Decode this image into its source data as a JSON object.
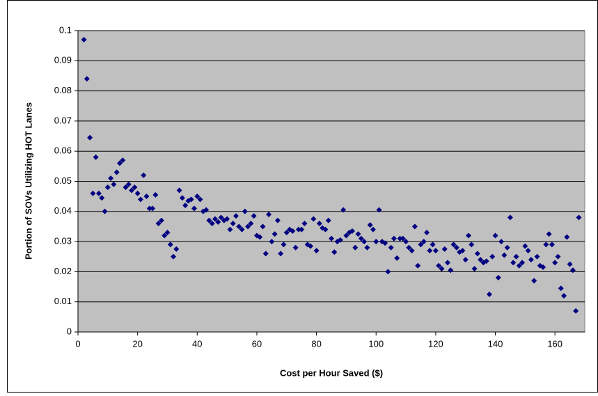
{
  "chart_data": {
    "type": "scatter",
    "xlabel": "Cost per Hour Saved ($)",
    "ylabel": "Portion of SOVs Utilizing HOT Lanes",
    "color": "#000080",
    "grid": true,
    "xlim": [
      0,
      170
    ],
    "xticks": [
      0,
      20,
      40,
      60,
      80,
      100,
      120,
      140,
      160
    ],
    "ylim": [
      0,
      0.1
    ],
    "yticks": [
      0,
      0.01,
      0.02,
      0.03,
      0.04,
      0.05,
      0.06,
      0.07,
      0.08,
      0.09,
      0.1
    ],
    "x": [
      2,
      3,
      4,
      5,
      6,
      7,
      8,
      9,
      10,
      11,
      12,
      13,
      14,
      15,
      16,
      17,
      18,
      19,
      20,
      21,
      22,
      23,
      24,
      25,
      26,
      27,
      28,
      29,
      30,
      31,
      32,
      33,
      34,
      35,
      36,
      37,
      38,
      39,
      40,
      41,
      42,
      43,
      44,
      45,
      46,
      47,
      48,
      49,
      50,
      51,
      52,
      53,
      54,
      55,
      56,
      57,
      58,
      59,
      60,
      61,
      62,
      63,
      64,
      65,
      66,
      67,
      68,
      69,
      70,
      71,
      72,
      73,
      74,
      75,
      76,
      77,
      78,
      79,
      80,
      81,
      82,
      83,
      84,
      85,
      86,
      87,
      88,
      89,
      90,
      91,
      92,
      93,
      94,
      95,
      96,
      97,
      98,
      99,
      100,
      101,
      102,
      103,
      104,
      105,
      106,
      107,
      108,
      109,
      110,
      111,
      112,
      113,
      114,
      115,
      116,
      117,
      118,
      119,
      120,
      121,
      122,
      123,
      124,
      125,
      126,
      127,
      128,
      129,
      130,
      131,
      132,
      133,
      134,
      135,
      136,
      137,
      138,
      139,
      140,
      141,
      142,
      143,
      144,
      145,
      146,
      147,
      148,
      149,
      150,
      151,
      152,
      153,
      154,
      155,
      156,
      157,
      158,
      159,
      160,
      161,
      162,
      163,
      164,
      165,
      166,
      167,
      168
    ],
    "values": [
      0.097,
      0.084,
      0.0645,
      0.046,
      0.058,
      0.046,
      0.0445,
      0.04,
      0.048,
      0.051,
      0.049,
      0.053,
      0.056,
      0.057,
      0.048,
      0.049,
      0.047,
      0.048,
      0.046,
      0.044,
      0.052,
      0.045,
      0.041,
      0.041,
      0.0455,
      0.036,
      0.037,
      0.032,
      0.033,
      0.029,
      0.025,
      0.0275,
      0.047,
      0.0445,
      0.042,
      0.0435,
      0.044,
      0.041,
      0.045,
      0.044,
      0.04,
      0.0405,
      0.037,
      0.036,
      0.0375,
      0.0365,
      0.038,
      0.037,
      0.0375,
      0.034,
      0.036,
      0.0385,
      0.035,
      0.034,
      0.04,
      0.035,
      0.036,
      0.0385,
      0.032,
      0.0315,
      0.035,
      0.026,
      0.039,
      0.03,
      0.0325,
      0.037,
      0.026,
      0.029,
      0.033,
      0.034,
      0.0335,
      0.028,
      0.034,
      0.034,
      0.036,
      0.029,
      0.0285,
      0.0375,
      0.027,
      0.036,
      0.0345,
      0.034,
      0.037,
      0.031,
      0.0265,
      0.03,
      0.0305,
      0.0405,
      0.032,
      0.033,
      0.0335,
      0.028,
      0.0325,
      0.031,
      0.03,
      0.028,
      0.0355,
      0.034,
      0.03,
      0.0405,
      0.03,
      0.0295,
      0.02,
      0.028,
      0.031,
      0.0245,
      0.031,
      0.031,
      0.03,
      0.028,
      0.027,
      0.035,
      0.022,
      0.029,
      0.03,
      0.033,
      0.027,
      0.029,
      0.027,
      0.022,
      0.021,
      0.0275,
      0.023,
      0.0205,
      0.029,
      0.028,
      0.0265,
      0.027,
      0.024,
      0.032,
      0.029,
      0.021,
      0.026,
      0.024,
      0.023,
      0.0235,
      0.0125,
      0.025,
      0.032,
      0.018,
      0.03,
      0.0255,
      0.028,
      0.038,
      0.023,
      0.025,
      0.022,
      0.023,
      0.0285,
      0.027,
      0.024,
      0.017,
      0.025,
      0.022,
      0.0215,
      0.029,
      0.0325,
      0.029,
      0.023,
      0.025,
      0.0145,
      0.012,
      0.0315,
      0.0225,
      0.0205,
      0.007,
      0.038
    ]
  }
}
